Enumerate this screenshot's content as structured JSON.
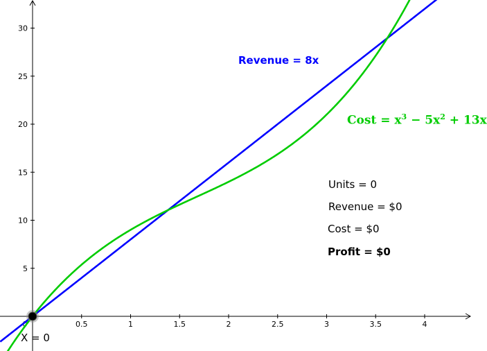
{
  "chart_data": {
    "type": "line",
    "x_range": [
      -0.33,
      4.5
    ],
    "y_range": [
      -3.5,
      33
    ],
    "x_ticks": [
      0.5,
      1,
      1.5,
      2,
      2.5,
      3,
      3.5,
      4
    ],
    "x_tick_labels": [
      "0.5",
      "1",
      "1.5",
      "2",
      "2.5",
      "3",
      "3.5",
      "4"
    ],
    "y_ticks": [
      5,
      10,
      15,
      20,
      25,
      30
    ],
    "y_tick_labels": [
      "5",
      "10",
      "15",
      "20",
      "25",
      "30"
    ],
    "origin_label": "0",
    "grid": false,
    "series": [
      {
        "name": "Revenue = 8x",
        "color": "#0000ff",
        "expression": "8x",
        "x_domain": [
          -0.33,
          4.5
        ]
      },
      {
        "name": "Cost = x^3 - 5x^2 + 13x",
        "color": "#00cc00",
        "expression": "x^3 - 5x^2 + 13x",
        "x_domain": [
          -0.3,
          4.0
        ]
      }
    ],
    "point": {
      "x": 0,
      "y": 0,
      "label": "X = 0"
    }
  },
  "labels": {
    "revenue": "Revenue = 8x",
    "cost_prefix": "Cost = x",
    "cost_exp1": "3",
    "cost_mid": " − 5x",
    "cost_exp2": "2",
    "cost_suffix": " + 13x"
  },
  "info": {
    "units": "Units = 0",
    "revenue": "Revenue = $0",
    "cost": "Cost = $0",
    "profit": "Profit = $0"
  },
  "colors": {
    "revenue": "#0000ff",
    "cost": "#00cc00"
  }
}
